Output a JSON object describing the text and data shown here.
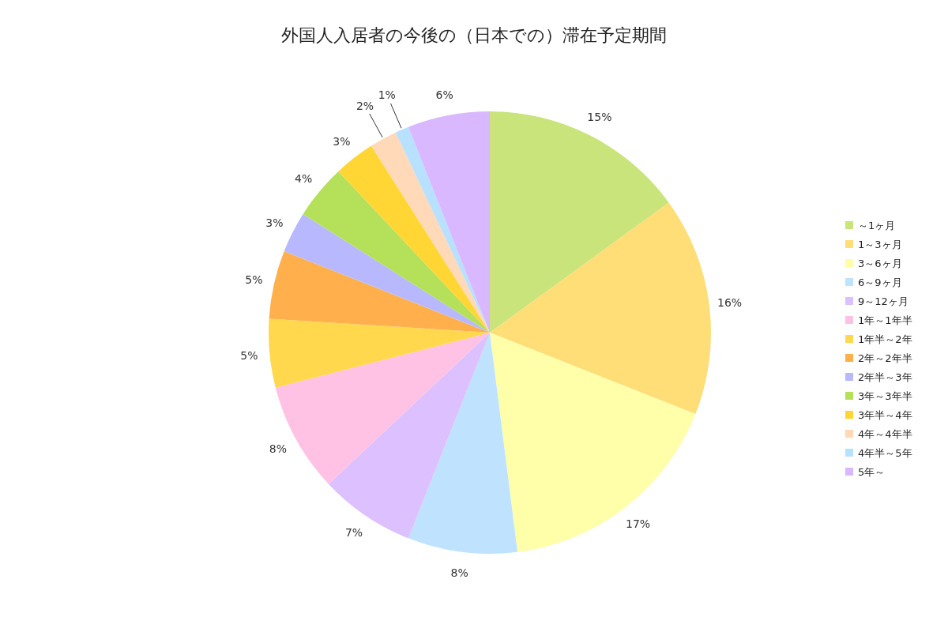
{
  "chart_data": {
    "type": "pie",
    "title": "外国人入居者の今後の（日本での）滞在予定期間",
    "categories": [
      "～1ヶ月",
      "1～3ヶ月",
      "3～6ヶ月",
      "6～9ヶ月",
      "9～12ヶ月",
      "1年～1年半",
      "1年半～2年",
      "2年～2年半",
      "2年半～3年",
      "3年～3年半",
      "3年半～4年",
      "4年～4年半",
      "4年半～5年",
      "5年～"
    ],
    "values": [
      15,
      16,
      17,
      8,
      7,
      8,
      5,
      5,
      3,
      4,
      3,
      2,
      1,
      6
    ],
    "colors": [
      "#c8e47a",
      "#ffdd77",
      "#ffffaa",
      "#bfe3ff",
      "#dcc0ff",
      "#ffc2e4",
      "#ffd84d",
      "#ffb04d",
      "#b8b8ff",
      "#b5e05a",
      "#ffd633",
      "#ffd9b8",
      "#b8e0ff",
      "#d9b8ff"
    ],
    "value_labels": [
      "15%",
      "16%",
      "17%",
      "8%",
      "7%",
      "8%",
      "5%",
      "5%",
      "3%",
      "4%",
      "3%",
      "2%",
      "1%",
      "6%"
    ],
    "legend": "right"
  }
}
